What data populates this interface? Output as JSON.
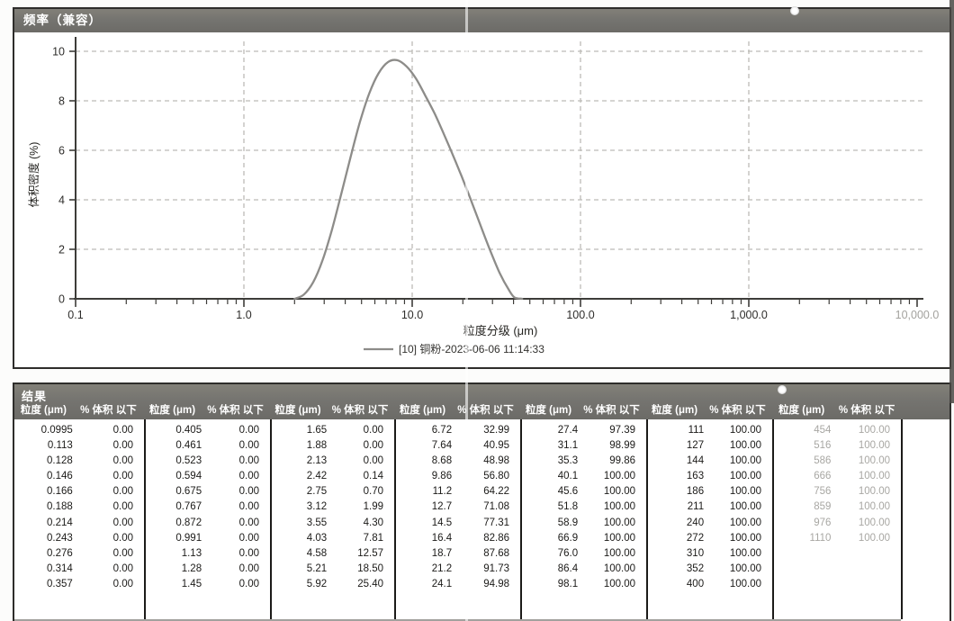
{
  "chart_panel": {
    "title_bar": "频率（兼容）"
  },
  "chart_data": {
    "type": "line",
    "title": "频率（兼容）",
    "xlabel": "粒度分级 (μm)",
    "ylabel": "体积密度 (%)",
    "x_scale": "log",
    "xlim": [
      0.1,
      10000
    ],
    "ylim": [
      0,
      10
    ],
    "grid": true,
    "legend_position": "bottom",
    "y_ticks": [
      0,
      2,
      4,
      6,
      8,
      10
    ],
    "x_tick_values": [
      0.1,
      1,
      10,
      100,
      1000,
      10000
    ],
    "x_tick_labels": [
      "0.1",
      "1.0",
      "10.0",
      "100.0",
      "1,000.0",
      "10,000.0"
    ],
    "series": [
      {
        "name": "[10] 铜粉-2023-06-06 11:14:33",
        "color": "#8d8c89",
        "x": [
          2.0,
          2.27,
          2.58,
          2.93,
          3.33,
          3.78,
          4.3,
          4.88,
          5.55,
          6.31,
          7.17,
          8.14,
          9.25,
          10.5,
          11.9,
          13.6,
          15.4,
          17.5,
          19.9,
          22.6,
          25.7,
          29.2,
          33.1,
          37.6,
          40.5,
          45.0
        ],
        "y": [
          0.0,
          0.17,
          0.67,
          1.55,
          2.77,
          4.21,
          5.72,
          7.12,
          8.29,
          9.11,
          9.56,
          9.64,
          9.39,
          8.91,
          8.24,
          7.48,
          6.66,
          5.79,
          4.86,
          3.9,
          2.89,
          1.92,
          1.04,
          0.35,
          0.06,
          0.0
        ]
      }
    ]
  },
  "results_table": {
    "title": "结果",
    "size_header": "粒度 (μm)",
    "pct_header": "% 体积 以下",
    "groups": [
      {
        "faded": false,
        "rows": [
          [
            "0.0995",
            "0.00"
          ],
          [
            "0.113",
            "0.00"
          ],
          [
            "0.128",
            "0.00"
          ],
          [
            "0.146",
            "0.00"
          ],
          [
            "0.166",
            "0.00"
          ],
          [
            "0.188",
            "0.00"
          ],
          [
            "0.214",
            "0.00"
          ],
          [
            "0.243",
            "0.00"
          ],
          [
            "0.276",
            "0.00"
          ],
          [
            "0.314",
            "0.00"
          ],
          [
            "0.357",
            "0.00"
          ]
        ]
      },
      {
        "faded": false,
        "rows": [
          [
            "0.405",
            "0.00"
          ],
          [
            "0.461",
            "0.00"
          ],
          [
            "0.523",
            "0.00"
          ],
          [
            "0.594",
            "0.00"
          ],
          [
            "0.675",
            "0.00"
          ],
          [
            "0.767",
            "0.00"
          ],
          [
            "0.872",
            "0.00"
          ],
          [
            "0.991",
            "0.00"
          ],
          [
            "1.13",
            "0.00"
          ],
          [
            "1.28",
            "0.00"
          ],
          [
            "1.45",
            "0.00"
          ]
        ]
      },
      {
        "faded": false,
        "rows": [
          [
            "1.65",
            "0.00"
          ],
          [
            "1.88",
            "0.00"
          ],
          [
            "2.13",
            "0.00"
          ],
          [
            "2.42",
            "0.14"
          ],
          [
            "2.75",
            "0.70"
          ],
          [
            "3.12",
            "1.99"
          ],
          [
            "3.55",
            "4.30"
          ],
          [
            "4.03",
            "7.81"
          ],
          [
            "4.58",
            "12.57"
          ],
          [
            "5.21",
            "18.50"
          ],
          [
            "5.92",
            "25.40"
          ]
        ]
      },
      {
        "faded": false,
        "rows": [
          [
            "6.72",
            "32.99"
          ],
          [
            "7.64",
            "40.95"
          ],
          [
            "8.68",
            "48.98"
          ],
          [
            "9.86",
            "56.80"
          ],
          [
            "11.2",
            "64.22"
          ],
          [
            "12.7",
            "71.08"
          ],
          [
            "14.5",
            "77.31"
          ],
          [
            "16.4",
            "82.86"
          ],
          [
            "18.7",
            "87.68"
          ],
          [
            "21.2",
            "91.73"
          ],
          [
            "24.1",
            "94.98"
          ]
        ]
      },
      {
        "faded": false,
        "rows": [
          [
            "27.4",
            "97.39"
          ],
          [
            "31.1",
            "98.99"
          ],
          [
            "35.3",
            "99.86"
          ],
          [
            "40.1",
            "100.00"
          ],
          [
            "45.6",
            "100.00"
          ],
          [
            "51.8",
            "100.00"
          ],
          [
            "58.9",
            "100.00"
          ],
          [
            "66.9",
            "100.00"
          ],
          [
            "76.0",
            "100.00"
          ],
          [
            "86.4",
            "100.00"
          ],
          [
            "98.1",
            "100.00"
          ]
        ]
      },
      {
        "faded": false,
        "rows": [
          [
            "111",
            "100.00"
          ],
          [
            "127",
            "100.00"
          ],
          [
            "144",
            "100.00"
          ],
          [
            "163",
            "100.00"
          ],
          [
            "186",
            "100.00"
          ],
          [
            "211",
            "100.00"
          ],
          [
            "240",
            "100.00"
          ],
          [
            "272",
            "100.00"
          ],
          [
            "310",
            "100.00"
          ],
          [
            "352",
            "100.00"
          ],
          [
            "400",
            "100.00"
          ]
        ]
      },
      {
        "faded": true,
        "rows": [
          [
            "454",
            "100.00"
          ],
          [
            "516",
            "100.00"
          ],
          [
            "586",
            "100.00"
          ],
          [
            "666",
            "100.00"
          ],
          [
            "756",
            "100.00"
          ],
          [
            "859",
            "100.00"
          ],
          [
            "976",
            "100.00"
          ],
          [
            "1110",
            "100.00"
          ]
        ]
      }
    ]
  },
  "colors": {
    "header_bar": "#757470",
    "curve": "#8d8c89",
    "grid": "#bcbbb7",
    "axis": "#3d3c39",
    "tick_text": "#2e2d2b",
    "faded_text": "#a8a7a3"
  }
}
